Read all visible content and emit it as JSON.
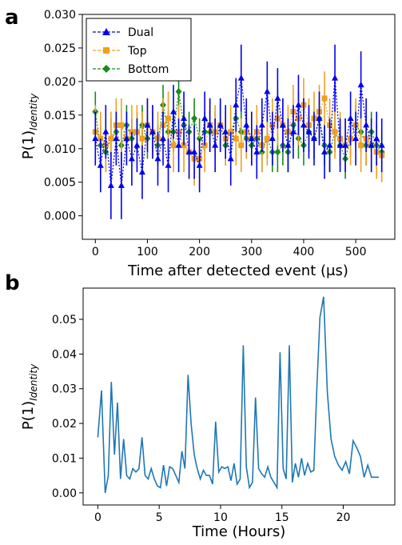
{
  "chart_data": [
    {
      "panel_label": "a",
      "type": "line",
      "xlabel": "Time after detected event (μs)",
      "ylabel": "P(1)",
      "ylabel_sub": "Identity",
      "xlim": [
        -25,
        575
      ],
      "ylim": [
        -0.0035,
        0.03
      ],
      "xticks": [
        0,
        100,
        200,
        300,
        400,
        500
      ],
      "yticks": [
        "0.000",
        "0.005",
        "0.010",
        "0.015",
        "0.020",
        "0.025",
        "0.030"
      ],
      "ytick_values": [
        0,
        0.005,
        0.01,
        0.015,
        0.02,
        0.025,
        0.03
      ],
      "legend_position": "upper-left",
      "series": [
        {
          "name": "Dual",
          "color": "#0000ee",
          "marker": "triangle",
          "x": [
            0,
            10,
            20,
            30,
            40,
            50,
            60,
            70,
            80,
            90,
            100,
            110,
            120,
            130,
            140,
            150,
            160,
            170,
            180,
            190,
            200,
            210,
            220,
            230,
            240,
            250,
            260,
            270,
            280,
            290,
            300,
            310,
            320,
            330,
            340,
            350,
            360,
            370,
            380,
            390,
            400,
            410,
            420,
            430,
            440,
            450,
            460,
            470,
            480,
            490,
            500,
            510,
            520,
            530,
            540,
            550
          ],
          "y": [
            0.0115,
            0.0075,
            0.0125,
            0.0045,
            0.0115,
            0.0045,
            0.0115,
            0.0085,
            0.0105,
            0.0065,
            0.0135,
            0.0125,
            0.0085,
            0.0115,
            0.0075,
            0.0155,
            0.0105,
            0.0145,
            0.0095,
            0.0095,
            0.0075,
            0.0145,
            0.0135,
            0.0105,
            0.0135,
            0.0125,
            0.0085,
            0.0165,
            0.0205,
            0.0135,
            0.0115,
            0.0095,
            0.0135,
            0.0185,
            0.0115,
            0.0175,
            0.0135,
            0.0105,
            0.0125,
            0.0165,
            0.0135,
            0.0125,
            0.0115,
            0.0145,
            0.0095,
            0.0105,
            0.0205,
            0.0105,
            0.0105,
            0.0145,
            0.0115,
            0.0195,
            0.0135,
            0.0105,
            0.0115,
            0.0105
          ],
          "err": [
            0.004,
            0.004,
            0.004,
            0.005,
            0.004,
            0.005,
            0.004,
            0.004,
            0.004,
            0.004,
            0.004,
            0.004,
            0.004,
            0.004,
            0.004,
            0.004,
            0.004,
            0.004,
            0.004,
            0.004,
            0.004,
            0.004,
            0.004,
            0.004,
            0.004,
            0.004,
            0.004,
            0.004,
            0.005,
            0.004,
            0.004,
            0.004,
            0.004,
            0.0045,
            0.004,
            0.0045,
            0.004,
            0.004,
            0.004,
            0.0045,
            0.004,
            0.004,
            0.004,
            0.004,
            0.004,
            0.004,
            0.005,
            0.004,
            0.004,
            0.004,
            0.004,
            0.005,
            0.004,
            0.004,
            0.004,
            0.004
          ]
        },
        {
          "name": "Top",
          "color": "#f0a020",
          "marker": "square",
          "x": [
            0,
            10,
            20,
            30,
            40,
            50,
            60,
            70,
            80,
            90,
            100,
            110,
            120,
            130,
            140,
            150,
            160,
            170,
            180,
            190,
            200,
            210,
            220,
            230,
            240,
            250,
            260,
            270,
            280,
            290,
            300,
            310,
            320,
            330,
            340,
            350,
            360,
            370,
            380,
            390,
            400,
            410,
            420,
            430,
            440,
            450,
            460,
            470,
            480,
            490,
            500,
            510,
            520,
            530,
            540,
            550
          ],
          "y": [
            0.0125,
            0.0115,
            0.0105,
            0.0115,
            0.0135,
            0.0135,
            0.0115,
            0.0125,
            0.0125,
            0.0115,
            0.0135,
            0.0125,
            0.0115,
            0.0135,
            0.0145,
            0.0105,
            0.0125,
            0.0105,
            0.0095,
            0.0085,
            0.0085,
            0.0105,
            0.0135,
            0.0125,
            0.0135,
            0.0115,
            0.0125,
            0.0115,
            0.0105,
            0.0125,
            0.0115,
            0.0125,
            0.0105,
            0.0115,
            0.0135,
            0.0145,
            0.0135,
            0.0125,
            0.0155,
            0.0145,
            0.0165,
            0.0135,
            0.0145,
            0.0155,
            0.0175,
            0.0135,
            0.0125,
            0.0115,
            0.0105,
            0.0115,
            0.0135,
            0.0105,
            0.0115,
            0.0105,
            0.0095,
            0.009
          ],
          "err": [
            0.004,
            0.004,
            0.004,
            0.004,
            0.004,
            0.004,
            0.004,
            0.004,
            0.004,
            0.004,
            0.004,
            0.004,
            0.004,
            0.004,
            0.004,
            0.004,
            0.004,
            0.004,
            0.004,
            0.004,
            0.004,
            0.004,
            0.004,
            0.004,
            0.004,
            0.004,
            0.004,
            0.004,
            0.004,
            0.004,
            0.004,
            0.004,
            0.004,
            0.004,
            0.004,
            0.004,
            0.004,
            0.004,
            0.004,
            0.004,
            0.004,
            0.004,
            0.004,
            0.004,
            0.004,
            0.004,
            0.004,
            0.004,
            0.004,
            0.004,
            0.004,
            0.004,
            0.004,
            0.004,
            0.004,
            0.004
          ]
        },
        {
          "name": "Bottom",
          "color": "#1a8a1a",
          "marker": "diamond",
          "x": [
            0,
            10,
            20,
            30,
            40,
            50,
            60,
            70,
            80,
            90,
            100,
            110,
            120,
            130,
            140,
            150,
            160,
            170,
            180,
            190,
            200,
            210,
            220,
            230,
            240,
            250,
            260,
            270,
            280,
            290,
            300,
            310,
            320,
            330,
            340,
            350,
            360,
            370,
            380,
            390,
            400,
            410,
            420,
            430,
            440,
            450,
            460,
            470,
            480,
            490,
            500,
            510,
            520,
            530,
            540,
            550
          ],
          "y": [
            0.0155,
            0.0105,
            0.0095,
            0.0115,
            0.0125,
            0.0105,
            0.0135,
            0.0115,
            0.0125,
            0.0135,
            0.0115,
            0.0125,
            0.0105,
            0.0165,
            0.0125,
            0.0125,
            0.0185,
            0.0135,
            0.0125,
            0.0145,
            0.0115,
            0.0125,
            0.0125,
            0.0125,
            0.0135,
            0.0105,
            0.0125,
            0.0145,
            0.0125,
            0.0115,
            0.0105,
            0.0115,
            0.0095,
            0.0115,
            0.0095,
            0.0095,
            0.0105,
            0.0095,
            0.0135,
            0.0115,
            0.0105,
            0.0125,
            0.0115,
            0.0145,
            0.0105,
            0.0095,
            0.0125,
            0.0105,
            0.0085,
            0.0115,
            0.0135,
            0.0125,
            0.0105,
            0.0125,
            0.0105,
            0.0095
          ],
          "err": [
            0.003,
            0.003,
            0.003,
            0.003,
            0.003,
            0.003,
            0.003,
            0.003,
            0.003,
            0.003,
            0.003,
            0.003,
            0.003,
            0.003,
            0.003,
            0.003,
            0.003,
            0.003,
            0.003,
            0.003,
            0.003,
            0.003,
            0.003,
            0.003,
            0.003,
            0.003,
            0.003,
            0.003,
            0.003,
            0.003,
            0.003,
            0.003,
            0.003,
            0.003,
            0.003,
            0.003,
            0.003,
            0.003,
            0.003,
            0.003,
            0.003,
            0.003,
            0.003,
            0.003,
            0.003,
            0.003,
            0.003,
            0.003,
            0.003,
            0.003,
            0.003,
            0.003,
            0.003,
            0.003,
            0.003,
            0.003
          ]
        }
      ]
    },
    {
      "panel_label": "b",
      "type": "line",
      "xlabel": "Time (Hours)",
      "ylabel": "P(1)",
      "ylabel_sub": "Identity",
      "xlim": [
        -1.2,
        24.2
      ],
      "ylim": [
        -0.0035,
        0.059
      ],
      "xticks": [
        0,
        5,
        10,
        15,
        20
      ],
      "yticks": [
        "0.00",
        "0.01",
        "0.02",
        "0.03",
        "0.04",
        "0.05"
      ],
      "ytick_values": [
        0,
        0.01,
        0.02,
        0.03,
        0.04,
        0.05
      ],
      "series": [
        {
          "name": "",
          "color": "#1f77b4",
          "x": [
            0.0,
            0.3,
            0.6,
            0.85,
            1.1,
            1.35,
            1.6,
            1.85,
            2.1,
            2.35,
            2.6,
            2.85,
            3.1,
            3.35,
            3.6,
            3.85,
            4.1,
            4.35,
            4.6,
            4.85,
            5.1,
            5.35,
            5.6,
            5.85,
            6.1,
            6.35,
            6.6,
            6.85,
            7.1,
            7.35,
            7.6,
            7.85,
            8.1,
            8.35,
            8.6,
            8.85,
            9.1,
            9.35,
            9.6,
            9.85,
            10.1,
            10.35,
            10.6,
            10.85,
            11.1,
            11.35,
            11.6,
            11.85,
            12.1,
            12.35,
            12.6,
            12.85,
            13.1,
            13.35,
            13.6,
            13.85,
            14.1,
            14.35,
            14.6,
            14.85,
            15.1,
            15.35,
            15.6,
            15.85,
            16.1,
            16.35,
            16.6,
            16.85,
            17.1,
            17.35,
            17.6,
            17.85,
            18.1,
            18.4,
            18.7,
            19.0,
            19.3,
            19.6,
            19.9,
            20.2,
            20.5,
            20.8,
            21.1,
            21.4,
            21.7,
            22.0,
            22.3,
            22.6,
            22.9
          ],
          "y": [
            0.016,
            0.0295,
            0.0,
            0.005,
            0.032,
            0.011,
            0.026,
            0.004,
            0.0155,
            0.005,
            0.004,
            0.007,
            0.006,
            0.007,
            0.016,
            0.005,
            0.004,
            0.007,
            0.004,
            0.002,
            0.0015,
            0.008,
            0.002,
            0.0075,
            0.007,
            0.005,
            0.003,
            0.012,
            0.007,
            0.034,
            0.02,
            0.011,
            0.007,
            0.004,
            0.0065,
            0.005,
            0.005,
            0.0025,
            0.0205,
            0.006,
            0.0075,
            0.007,
            0.0075,
            0.0035,
            0.0085,
            0.0025,
            0.004,
            0.0425,
            0.0075,
            0.0015,
            0.003,
            0.0275,
            0.007,
            0.0055,
            0.0045,
            0.0075,
            0.0045,
            0.003,
            0.0015,
            0.0405,
            0.007,
            0.004,
            0.0425,
            0.003,
            0.0085,
            0.0045,
            0.01,
            0.005,
            0.0085,
            0.006,
            0.0065,
            0.0305,
            0.0505,
            0.0565,
            0.029,
            0.0155,
            0.0105,
            0.008,
            0.0065,
            0.009,
            0.0055,
            0.015,
            0.013,
            0.0105,
            0.0045,
            0.008,
            0.0045,
            0.0045,
            0.0045
          ]
        }
      ]
    }
  ],
  "legend": {
    "dual_label": "Dual",
    "top_label": "Top",
    "bottom_label": "Bottom"
  }
}
